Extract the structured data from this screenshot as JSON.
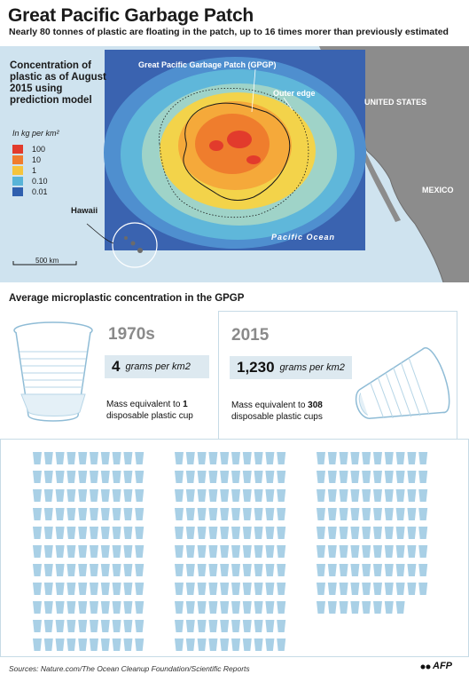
{
  "header": {
    "title": "Great Pacific Garbage Patch",
    "subtitle": "Nearly 80 tonnes of plastic are floating in the patch, up to 16 times morer than previously estimated"
  },
  "map": {
    "legend_title": "Concentration of plastic as of August 2015 using prediction model",
    "legend_unit": "In kg per km²",
    "legend": [
      {
        "label": "100",
        "color": "#e23b2c"
      },
      {
        "label": "10",
        "color": "#f07c2e"
      },
      {
        "label": "1",
        "color": "#f6c43c"
      },
      {
        "label": "0.10",
        "color": "#58b4d8"
      },
      {
        "label": "0.01",
        "color": "#2f5fae"
      }
    ],
    "labels": {
      "gpgp": "Great Pacific Garbage Patch (GPGP)",
      "outer_edge": "Outer edge",
      "us": "UNITED STATES",
      "mexico": "MEXICO",
      "ocean": "Pacific Ocean",
      "hawaii": "Hawaii",
      "scale": "500 km"
    }
  },
  "comparison": {
    "section_title": "Average microplastic concentration in the GPGP",
    "then": {
      "year": "1970s",
      "amount": "4",
      "unit": "grams per km2",
      "mass_prefix": "Mass equivalent to ",
      "mass_value": "1",
      "mass_suffix": "disposable plastic cup"
    },
    "now": {
      "year": "2015",
      "amount": "1,230",
      "unit": "grams per km2",
      "mass_prefix": "Mass equivalent to ",
      "mass_value": "308",
      "mass_suffix": "disposable plastic cups"
    },
    "cup_count": 308,
    "cup_color": "#a9d0e6"
  },
  "footer": {
    "sources": "Sources: Nature.com/The Ocean Cleanup Foundation/Scientific Reports",
    "agency": "AFP"
  }
}
